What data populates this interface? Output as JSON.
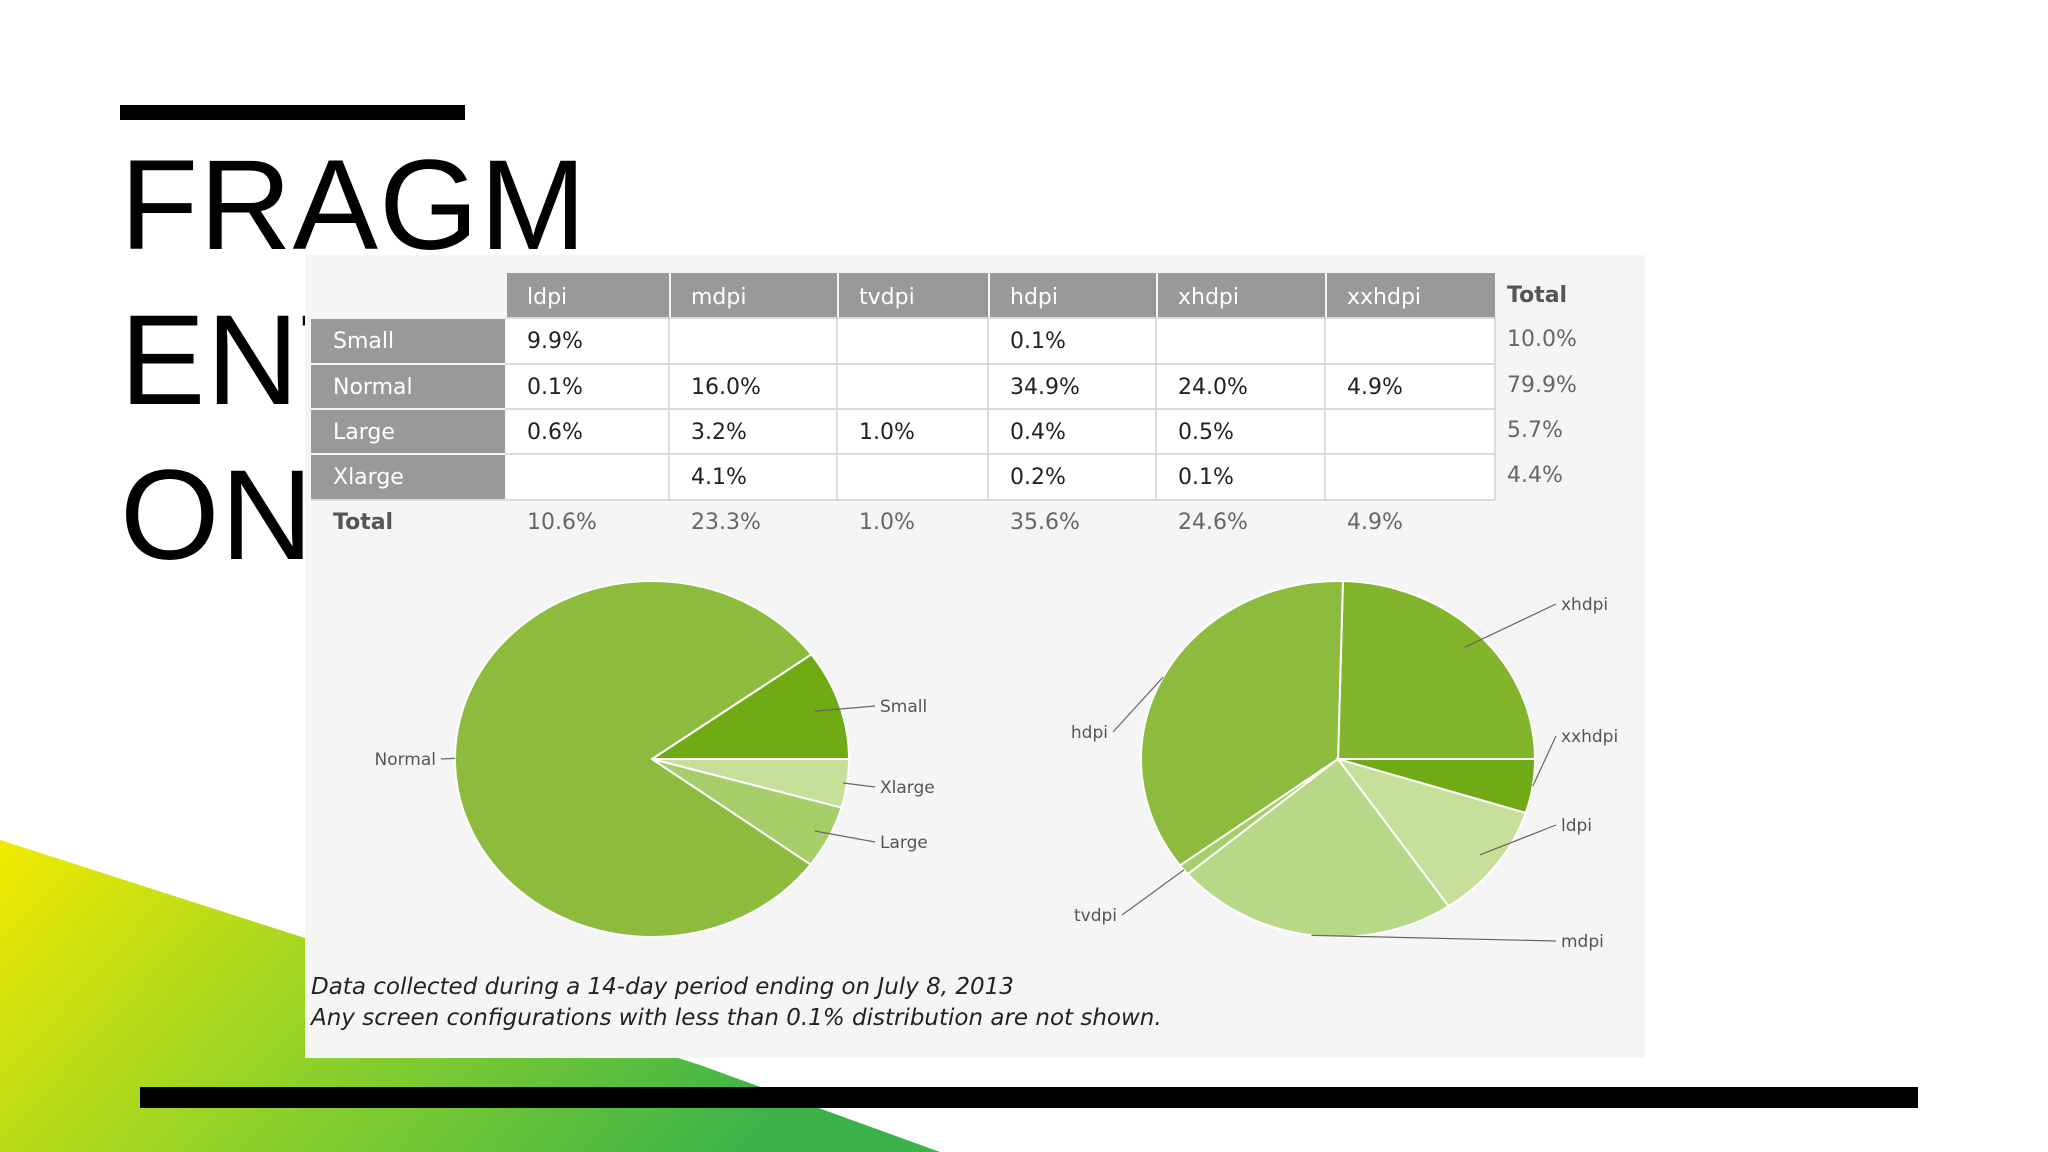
{
  "slide": {
    "title_lines": [
      "FRAGM",
      "ENTATI",
      "ON"
    ]
  },
  "table": {
    "columns": [
      "ldpi",
      "mdpi",
      "tvdpi",
      "hdpi",
      "xhdpi",
      "xxhdpi"
    ],
    "total_header": "Total",
    "rows": [
      {
        "label": "Small",
        "cells": [
          "9.9%",
          "",
          "",
          "0.1%",
          "",
          ""
        ],
        "total": "10.0%"
      },
      {
        "label": "Normal",
        "cells": [
          "0.1%",
          "16.0%",
          "",
          "34.9%",
          "24.0%",
          "4.9%"
        ],
        "total": "79.9%"
      },
      {
        "label": "Large",
        "cells": [
          "0.6%",
          "3.2%",
          "1.0%",
          "0.4%",
          "0.5%",
          ""
        ],
        "total": "5.7%"
      },
      {
        "label": "Xlarge",
        "cells": [
          "",
          "4.1%",
          "",
          "0.2%",
          "0.1%",
          ""
        ],
        "total": "4.4%"
      }
    ],
    "total_row": {
      "label": "Total",
      "cells": [
        "10.6%",
        "23.3%",
        "1.0%",
        "35.6%",
        "24.6%",
        "4.9%"
      ]
    }
  },
  "colors": {
    "header_bg": "#999999",
    "header_text": "#ffffff",
    "grid": "#d0d0d0",
    "green_main": "#8cbb3d",
    "green_dark": "#70aa14",
    "green_light": "#a6cf6a",
    "green_pale": "#c6e09c"
  },
  "chart_data": [
    {
      "type": "pie",
      "title": "",
      "slices": [
        {
          "label": "Small",
          "value": 10.0,
          "color": "#70aa14"
        },
        {
          "label": "Normal",
          "value": 79.9,
          "color": "#8cbb3d"
        },
        {
          "label": "Large",
          "value": 5.7,
          "color": "#a6cf6a"
        },
        {
          "label": "Xlarge",
          "value": 4.4,
          "color": "#c6e09c"
        }
      ]
    },
    {
      "type": "pie",
      "title": "",
      "slices": [
        {
          "label": "xhdpi",
          "value": 24.6,
          "color": "#82b42c"
        },
        {
          "label": "hdpi",
          "value": 35.6,
          "color": "#8cbb3d"
        },
        {
          "label": "tvdpi",
          "value": 1.0,
          "color": "#a6cf6a"
        },
        {
          "label": "mdpi",
          "value": 23.3,
          "color": "#b6d887"
        },
        {
          "label": "ldpi",
          "value": 10.6,
          "color": "#c6e09c"
        },
        {
          "label": "xxhdpi",
          "value": 4.9,
          "color": "#70aa14"
        }
      ]
    }
  ],
  "footnote": {
    "line1": "Data collected during a 14-day period ending on July 8, 2013",
    "line2": "Any screen configurations with less than 0.1% distribution are not shown."
  }
}
